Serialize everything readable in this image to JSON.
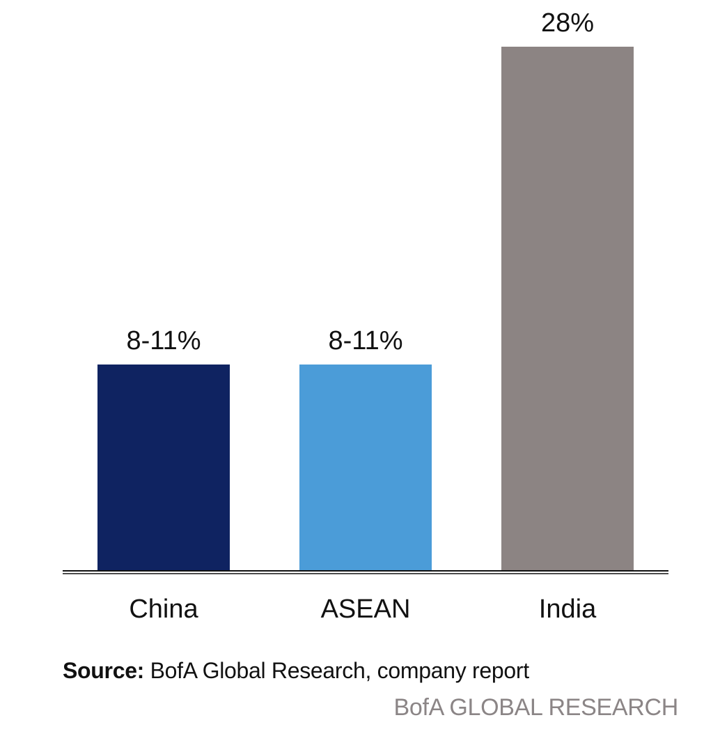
{
  "chart_data": {
    "type": "bar",
    "categories": [
      "China",
      "ASEAN",
      "India"
    ],
    "values": [
      11,
      11,
      28
    ],
    "value_labels": [
      "8-11%",
      "8-11%",
      "28%"
    ],
    "colors": [
      "#0f2361",
      "#4b9cd8",
      "#8c8483"
    ],
    "ylim": [
      0,
      28
    ],
    "grid": false,
    "axis_color": "#111111"
  },
  "footer": {
    "source_label": "Source:",
    "source_text": " BofA Global Research, company report",
    "brand": "BofA GLOBAL RESEARCH"
  }
}
